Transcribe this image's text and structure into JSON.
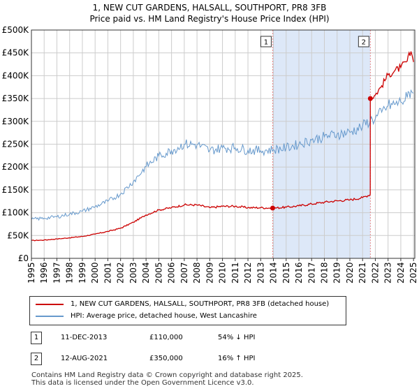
{
  "title_line1": "1, NEW CUT GARDENS, HALSALL, SOUTHPORT, PR8 3FB",
  "title_line2": "Price paid vs. HM Land Registry's House Price Index (HPI)",
  "colors": {
    "property": "#cc0000",
    "hpi": "#6699cc",
    "shade": "#dde8f8",
    "marker_line": "#e88888",
    "grid": "#cccccc"
  },
  "chart_data": {
    "type": "line",
    "title": "Price paid vs. HM Land Registry's House Price Index (HPI)",
    "xlim": [
      1995,
      2025.1
    ],
    "ylim": [
      0,
      500000
    ],
    "y_ticks": [
      {
        "value": 0,
        "label": "£0"
      },
      {
        "value": 50000,
        "label": "£50K"
      },
      {
        "value": 100000,
        "label": "£100K"
      },
      {
        "value": 150000,
        "label": "£150K"
      },
      {
        "value": 200000,
        "label": "£200K"
      },
      {
        "value": 250000,
        "label": "£250K"
      },
      {
        "value": 300000,
        "label": "£300K"
      },
      {
        "value": 350000,
        "label": "£350K"
      },
      {
        "value": 400000,
        "label": "£400K"
      },
      {
        "value": 450000,
        "label": "£450K"
      },
      {
        "value": 500000,
        "label": "£500K"
      }
    ],
    "x_ticks": [
      "1995",
      "1996",
      "1997",
      "1998",
      "1999",
      "2000",
      "2001",
      "2002",
      "2003",
      "2004",
      "2005",
      "2006",
      "2007",
      "2008",
      "2009",
      "2010",
      "2011",
      "2012",
      "2013",
      "2014",
      "2015",
      "2016",
      "2017",
      "2018",
      "2019",
      "2020",
      "2021",
      "2022",
      "2023",
      "2024",
      "2025"
    ],
    "shaded_range": [
      2013.94,
      2021.61
    ],
    "series": [
      {
        "name": "1, NEW CUT GARDENS, HALSALL, SOUTHPORT, PR8 3FB (detached house)",
        "color": "#cc0000",
        "points": [
          [
            1995.0,
            39000
          ],
          [
            1996.0,
            40000
          ],
          [
            1997.0,
            42500
          ],
          [
            1998.0,
            45000
          ],
          [
            1999.0,
            48000
          ],
          [
            2000.0,
            53000
          ],
          [
            2001.0,
            59000
          ],
          [
            2002.0,
            66000
          ],
          [
            2003.0,
            79000
          ],
          [
            2004.0,
            95000
          ],
          [
            2005.0,
            106000
          ],
          [
            2006.0,
            111000
          ],
          [
            2007.0,
            117000
          ],
          [
            2008.0,
            117000
          ],
          [
            2009.0,
            111000
          ],
          [
            2010.0,
            114000
          ],
          [
            2011.0,
            114000
          ],
          [
            2012.0,
            111000
          ],
          [
            2013.0,
            111000
          ],
          [
            2013.94,
            110000
          ],
          [
            2015.0,
            112000
          ],
          [
            2016.0,
            115000
          ],
          [
            2017.0,
            119000
          ],
          [
            2018.0,
            123000
          ],
          [
            2019.0,
            126000
          ],
          [
            2020.0,
            128000
          ],
          [
            2021.0,
            133000
          ],
          [
            2021.6,
            140000
          ],
          [
            2021.61,
            350000
          ],
          [
            2022.0,
            358000
          ],
          [
            2022.5,
            378000
          ],
          [
            2023.0,
            402000
          ],
          [
            2023.5,
            410000
          ],
          [
            2024.0,
            418000
          ],
          [
            2024.5,
            432000
          ],
          [
            2024.8,
            453000
          ],
          [
            2025.0,
            430000
          ]
        ]
      },
      {
        "name": "HPI: Average price, detached house, West Lancashire",
        "color": "#6699cc",
        "points": [
          [
            1995.0,
            85000
          ],
          [
            1996.0,
            88000
          ],
          [
            1997.0,
            91000
          ],
          [
            1998.0,
            97000
          ],
          [
            1999.0,
            103000
          ],
          [
            2000.0,
            113000
          ],
          [
            2001.0,
            125000
          ],
          [
            2002.0,
            141000
          ],
          [
            2003.0,
            168000
          ],
          [
            2004.0,
            201000
          ],
          [
            2005.0,
            224000
          ],
          [
            2006.0,
            236000
          ],
          [
            2007.0,
            250000
          ],
          [
            2008.0,
            249000
          ],
          [
            2009.0,
            236000
          ],
          [
            2010.0,
            242000
          ],
          [
            2011.0,
            242000
          ],
          [
            2012.0,
            237000
          ],
          [
            2013.0,
            236000
          ],
          [
            2014.0,
            238000
          ],
          [
            2015.0,
            242000
          ],
          [
            2016.0,
            250000
          ],
          [
            2017.0,
            259000
          ],
          [
            2018.0,
            266000
          ],
          [
            2019.0,
            272000
          ],
          [
            2020.0,
            276000
          ],
          [
            2021.0,
            289000
          ],
          [
            2021.61,
            302000
          ],
          [
            2022.0,
            306000
          ],
          [
            2022.5,
            320000
          ],
          [
            2023.0,
            334000
          ],
          [
            2023.5,
            337000
          ],
          [
            2024.0,
            342000
          ],
          [
            2024.5,
            352000
          ],
          [
            2024.8,
            368000
          ],
          [
            2025.0,
            362000
          ]
        ]
      }
    ],
    "sales": [
      {
        "num": "1",
        "x": 2013.94,
        "price": 110000
      },
      {
        "num": "2",
        "x": 2021.61,
        "price": 350000
      }
    ]
  },
  "legend": {
    "items": [
      {
        "label": "1, NEW CUT GARDENS, HALSALL, SOUTHPORT, PR8 3FB (detached house)",
        "color": "#cc0000"
      },
      {
        "label": "HPI: Average price, detached house, West Lancashire",
        "color": "#6699cc"
      }
    ]
  },
  "sales_table": [
    {
      "num": "1",
      "date": "11-DEC-2013",
      "price": "£110,000",
      "hpi": "54% ↓ HPI"
    },
    {
      "num": "2",
      "date": "12-AUG-2021",
      "price": "£350,000",
      "hpi": "16% ↑ HPI"
    }
  ],
  "footer": {
    "line1": "Contains HM Land Registry data © Crown copyright and database right 2025.",
    "line2": "This data is licensed under the Open Government Licence v3.0."
  }
}
